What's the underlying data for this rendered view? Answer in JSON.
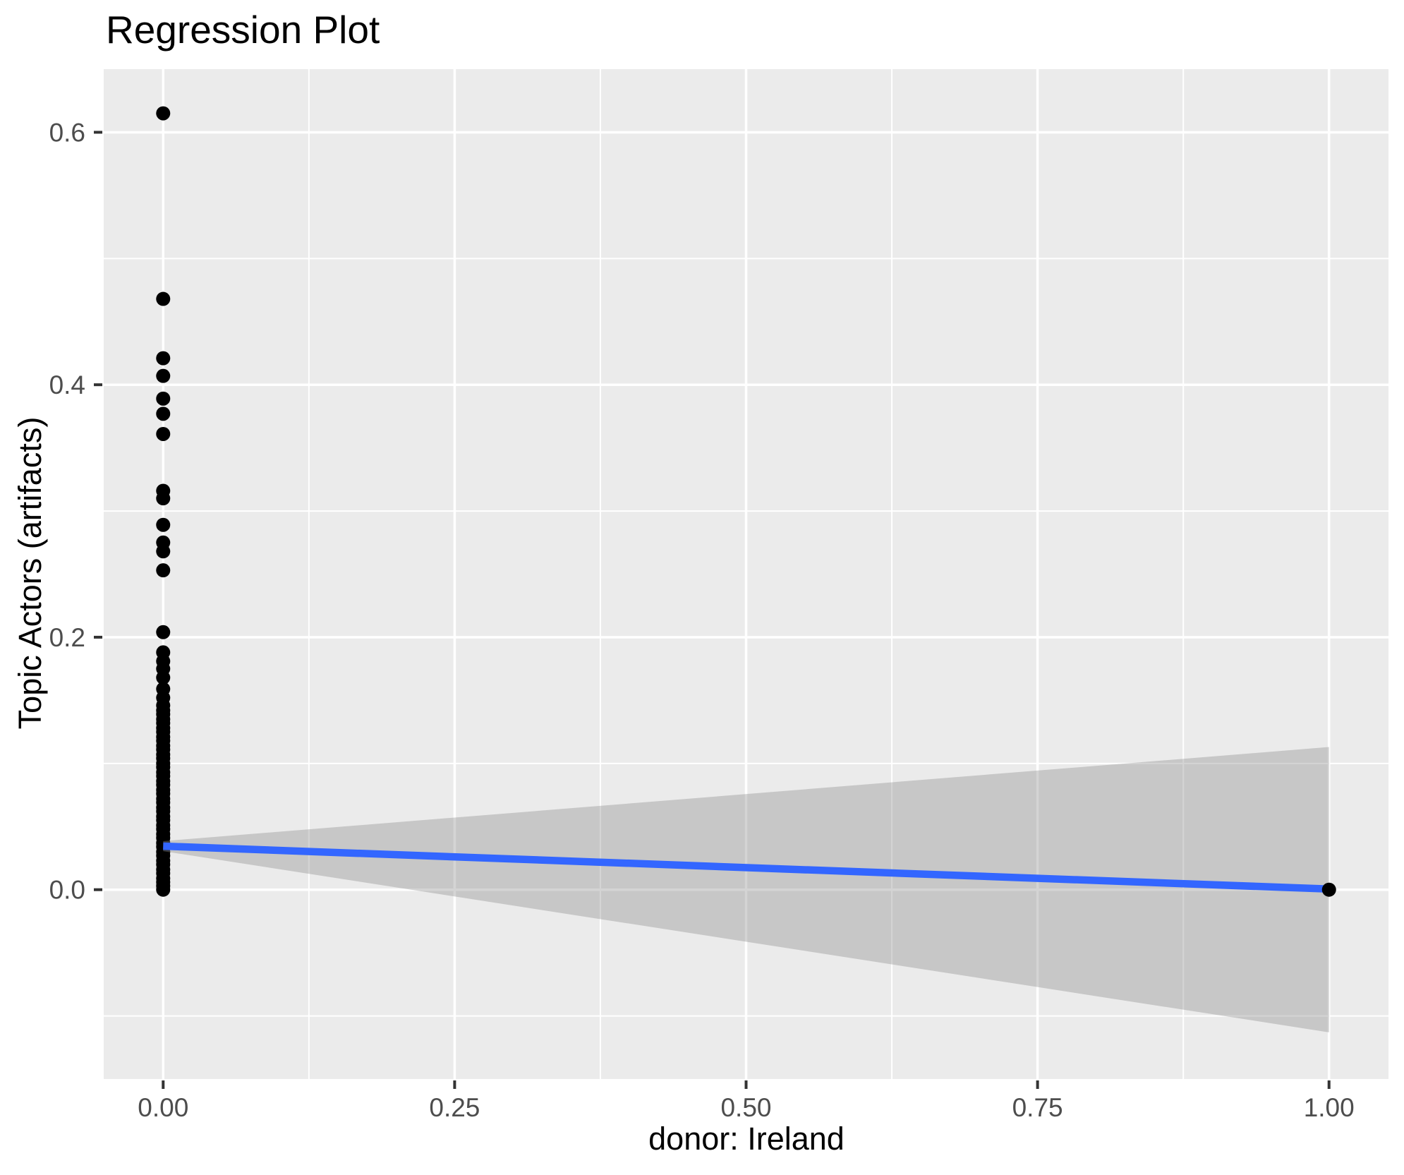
{
  "title": "Regression Plot",
  "chart_data": {
    "type": "scatter",
    "title": "Regression Plot",
    "xlabel": "donor: Ireland",
    "ylabel": "Topic Actors (artifacts)",
    "xlim": [
      -0.051,
      1.051
    ],
    "ylim": [
      -0.15,
      0.65
    ],
    "grid": true,
    "legend": false,
    "x_ticks": [
      0.0,
      0.25,
      0.5,
      0.75,
      1.0
    ],
    "x_tick_labels": [
      "0.00",
      "0.25",
      "0.50",
      "0.75",
      "1.00"
    ],
    "x_minor_ticks": [
      0.125,
      0.375,
      0.625,
      0.875
    ],
    "y_ticks": [
      0.0,
      0.2,
      0.4,
      0.6
    ],
    "y_tick_labels": [
      "0.0",
      "0.2",
      "0.4",
      "0.6"
    ],
    "y_minor_ticks": [
      -0.1,
      0.1,
      0.3,
      0.5
    ],
    "points": [
      [
        0,
        0.615
      ],
      [
        0,
        0.468
      ],
      [
        0,
        0.421
      ],
      [
        0,
        0.407
      ],
      [
        0,
        0.389
      ],
      [
        0,
        0.377
      ],
      [
        0,
        0.361
      ],
      [
        0,
        0.316
      ],
      [
        0,
        0.31
      ],
      [
        0,
        0.289
      ],
      [
        0,
        0.275
      ],
      [
        0,
        0.268
      ],
      [
        0,
        0.253
      ],
      [
        0,
        0.204
      ],
      [
        0,
        0.188
      ],
      [
        0,
        0.181
      ],
      [
        0,
        0.175
      ],
      [
        0,
        0.168
      ],
      [
        0,
        0.159
      ],
      [
        0,
        0.152
      ],
      [
        0,
        0.146
      ],
      [
        0,
        0.142
      ],
      [
        0,
        0.139
      ],
      [
        0,
        0.135
      ],
      [
        0,
        0.132
      ],
      [
        0,
        0.128
      ],
      [
        0,
        0.125
      ],
      [
        0,
        0.121
      ],
      [
        0,
        0.118
      ],
      [
        0,
        0.114
      ],
      [
        0,
        0.111
      ],
      [
        0,
        0.107
      ],
      [
        0,
        0.104
      ],
      [
        0,
        0.1
      ],
      [
        0,
        0.097
      ],
      [
        0,
        0.093
      ],
      [
        0,
        0.09
      ],
      [
        0,
        0.086
      ],
      [
        0,
        0.083
      ],
      [
        0,
        0.079
      ],
      [
        0,
        0.076
      ],
      [
        0,
        0.072
      ],
      [
        0,
        0.069
      ],
      [
        0,
        0.065
      ],
      [
        0,
        0.062
      ],
      [
        0,
        0.058
      ],
      [
        0,
        0.055
      ],
      [
        0,
        0.051
      ],
      [
        0,
        0.048
      ],
      [
        0,
        0.044
      ],
      [
        0,
        0.041
      ],
      [
        0,
        0.037
      ],
      [
        0,
        0.034
      ],
      [
        0,
        0.03
      ],
      [
        0,
        0.027
      ],
      [
        0,
        0.023
      ],
      [
        0,
        0.02
      ],
      [
        0,
        0.016
      ],
      [
        0,
        0.013
      ],
      [
        0,
        0.009
      ],
      [
        0,
        0.006
      ],
      [
        0,
        0.003
      ],
      [
        0,
        0.0
      ],
      [
        1,
        0.0
      ]
    ],
    "regression_line": {
      "x": [
        0,
        1
      ],
      "y": [
        0.0345,
        0.0005
      ],
      "color": "#3366FF"
    },
    "confidence_band": {
      "polygon": [
        [
          0,
          0.0385
        ],
        [
          1,
          0.113
        ],
        [
          1,
          -0.113
        ],
        [
          0,
          0.0305
        ]
      ],
      "color": "#8F8F8F",
      "opacity": 0.38
    },
    "colors": {
      "background": "#FFFFFF",
      "panel_background": "#EBEBEB",
      "grid_major": "#FFFFFF",
      "grid_minor": "#FFFFFF",
      "point": "#000000",
      "axis_text": "#4D4D4D",
      "tick_mark": "#333333",
      "title_text": "#000000"
    }
  }
}
